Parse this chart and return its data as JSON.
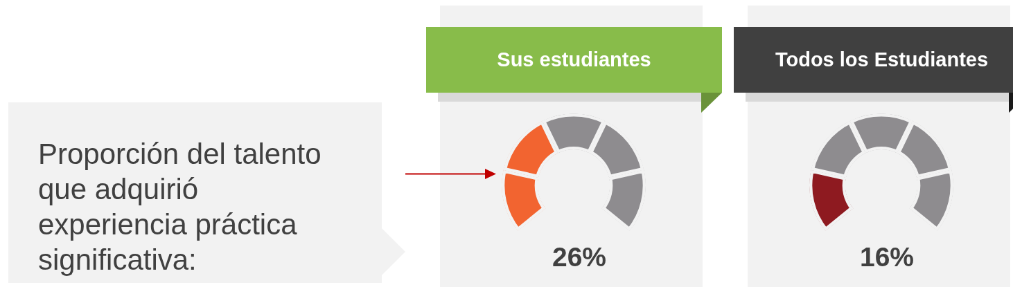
{
  "chart_data": [
    {
      "type": "other",
      "title": "Proporción del talento que adquirió experiencia práctica significativa:"
    },
    {
      "type": "donut",
      "title": "Sus estudiantes",
      "categories": [
        null,
        null,
        null,
        null,
        null
      ],
      "values": [
        20,
        20,
        20,
        20,
        20
      ],
      "colors": [
        "#f26430",
        "#f26430",
        "#8e8c8f",
        "#8e8c8f",
        "#8e8c8f"
      ],
      "annotations": [
        "26%"
      ]
    },
    {
      "type": "donut",
      "title": "Todos los Estudiantes",
      "categories": [
        null,
        null,
        null,
        null,
        null
      ],
      "values": [
        20,
        20,
        20,
        20,
        20
      ],
      "colors": [
        "#8e1a20",
        "#8e8c8f",
        "#8e8c8f",
        "#8e8c8f",
        "#8e8c8f"
      ],
      "annotations": [
        "16%"
      ]
    }
  ]
}
